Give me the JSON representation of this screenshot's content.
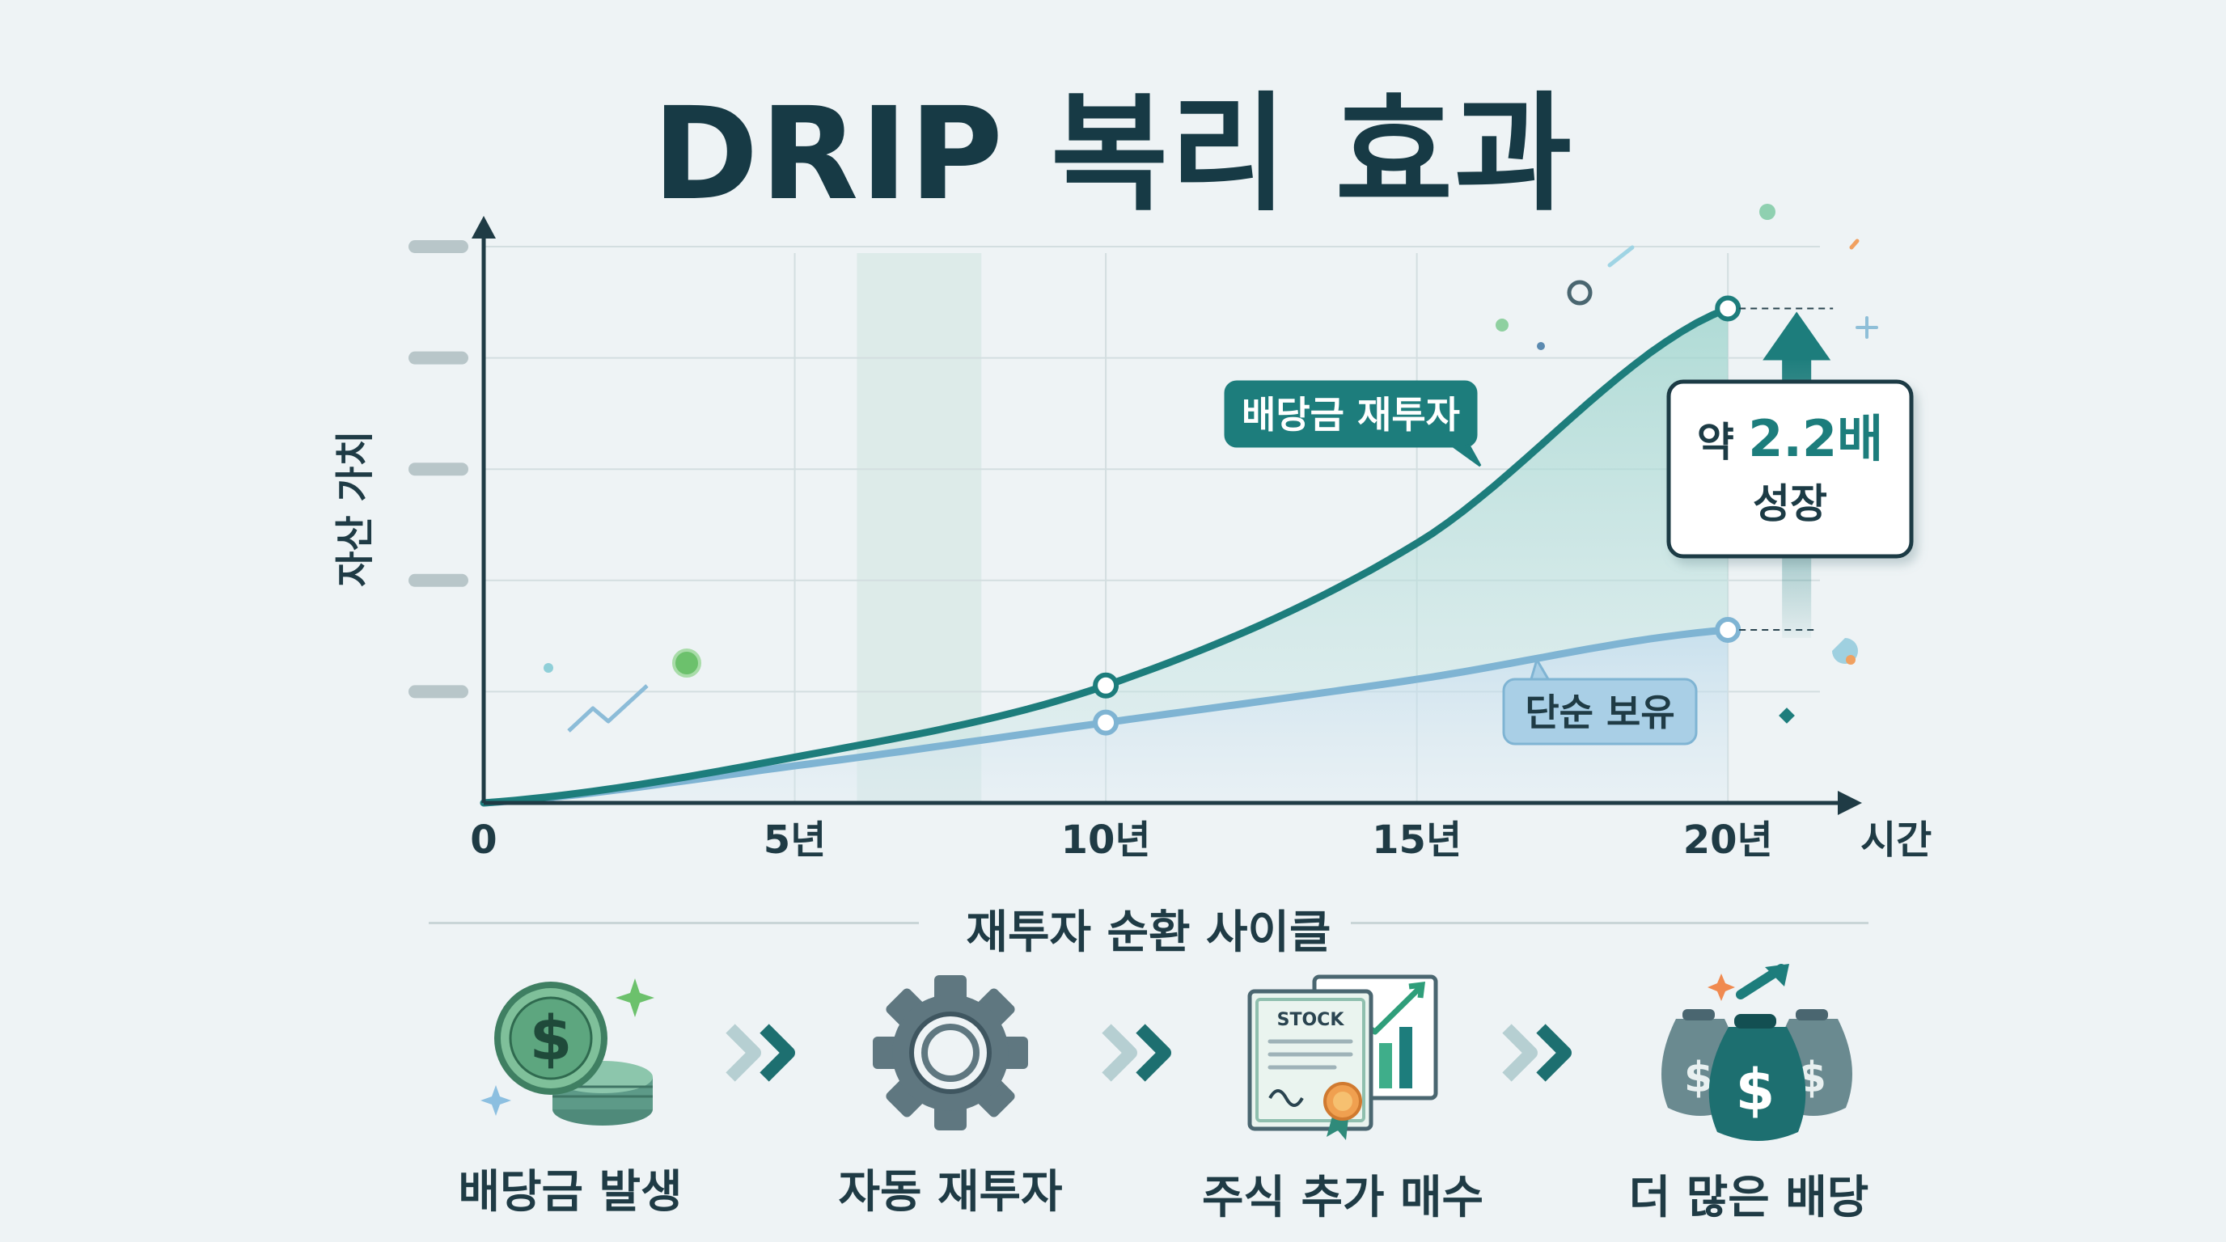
{
  "title": "DRIP 복리 효과",
  "chart_data": {
    "type": "line",
    "x": [
      0,
      5,
      10,
      15,
      20
    ],
    "x_tick_labels": [
      "0",
      "5년",
      "10년",
      "15년",
      "20년"
    ],
    "xlabel": "시간",
    "ylabel": "자산 가치",
    "series": [
      {
        "name": "배당금 재투자",
        "values": [
          0,
          0.37,
          0.95,
          2.1,
          4.0
        ],
        "color": "#1d7d7c"
      },
      {
        "name": "단순 보유",
        "values": [
          0,
          0.3,
          0.65,
          1.0,
          1.4
        ],
        "color": "#7fb4d3"
      }
    ],
    "annotation": {
      "prefix": "약 ",
      "value": "2.2배",
      "suffix": "성장"
    },
    "xlim": [
      0,
      22
    ],
    "ylim": [
      0,
      4.5
    ],
    "grid": true
  },
  "cycle": {
    "title": "재투자 순환 사이클",
    "steps": [
      {
        "label": "배당금 발생",
        "icon": "coin-stack-icon"
      },
      {
        "label": "자동 재투자",
        "icon": "gear-icon"
      },
      {
        "label": "주식 추가 매수",
        "icon": "stock-certificate-icon",
        "icon_text": "STOCK"
      },
      {
        "label": "더 많은 배당",
        "icon": "money-bags-icon"
      }
    ]
  },
  "colors": {
    "primary": "#1d7d7c",
    "secondary": "#7fb4d3",
    "text": "#1f3b45"
  }
}
